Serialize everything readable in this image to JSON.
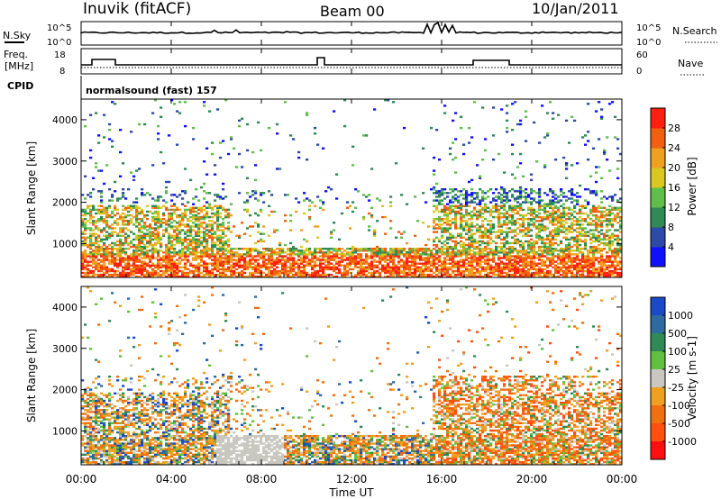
{
  "header": {
    "station": "Inuvik (fitACF)",
    "beam": "Beam 00",
    "date": "10/Jan/2011"
  },
  "strips": {
    "nsky_label": "N.Sky",
    "nsky_ticks": [
      "10^5",
      "10^0"
    ],
    "nsearch_label": "N.Search",
    "nsearch_ticks": [
      "10^5",
      "10^0"
    ],
    "freq_label_1": "Freq.",
    "freq_label_2": "[MHz]",
    "freq_ticks": [
      "18",
      "8"
    ],
    "nave_label": "Nave",
    "nave_ticks": [
      "60",
      "0"
    ],
    "cpid_label": "CPID",
    "cpid_value": "normalsound (fast) 157"
  },
  "chart_data": [
    {
      "type": "heatmap",
      "name": "power",
      "ylabel": "Slant Range [km]",
      "y_ticks": [
        "1000",
        "2000",
        "3000",
        "4000"
      ],
      "ylim": [
        180,
        4500
      ],
      "colorbar_label": "Power [dB]",
      "colorbar_ticks": [
        "4",
        "8",
        "12",
        "16",
        "20",
        "24",
        "28"
      ],
      "colorbar_colors": [
        "#1010ff",
        "#2c4aa8",
        "#2f8a55",
        "#5fbf4a",
        "#d8c820",
        "#f0a020",
        "#f06010",
        "#ff2010"
      ]
    },
    {
      "type": "heatmap",
      "name": "velocity",
      "ylabel": "Slant Range [km]",
      "y_ticks": [
        "1000",
        "2000",
        "3000",
        "4000"
      ],
      "ylim": [
        180,
        4500
      ],
      "colorbar_label": "Velocity [m s-1]",
      "colorbar_ticks": [
        "1000",
        "500",
        "100",
        "25",
        "-25",
        "-100",
        "-500",
        "-1000"
      ],
      "colorbar_colors": [
        "#1a4ac8",
        "#2c6aa0",
        "#2f8a55",
        "#60c040",
        "#c8c8c0",
        "#f0a020",
        "#f07010",
        "#ff5010",
        "#ff1010"
      ]
    }
  ],
  "time_axis": {
    "ticks": [
      "00:00",
      "04:00",
      "08:00",
      "12:00",
      "16:00",
      "20:00",
      "00:00"
    ],
    "xlabel": "Time UT"
  },
  "colors": {
    "axis": "#000000"
  }
}
